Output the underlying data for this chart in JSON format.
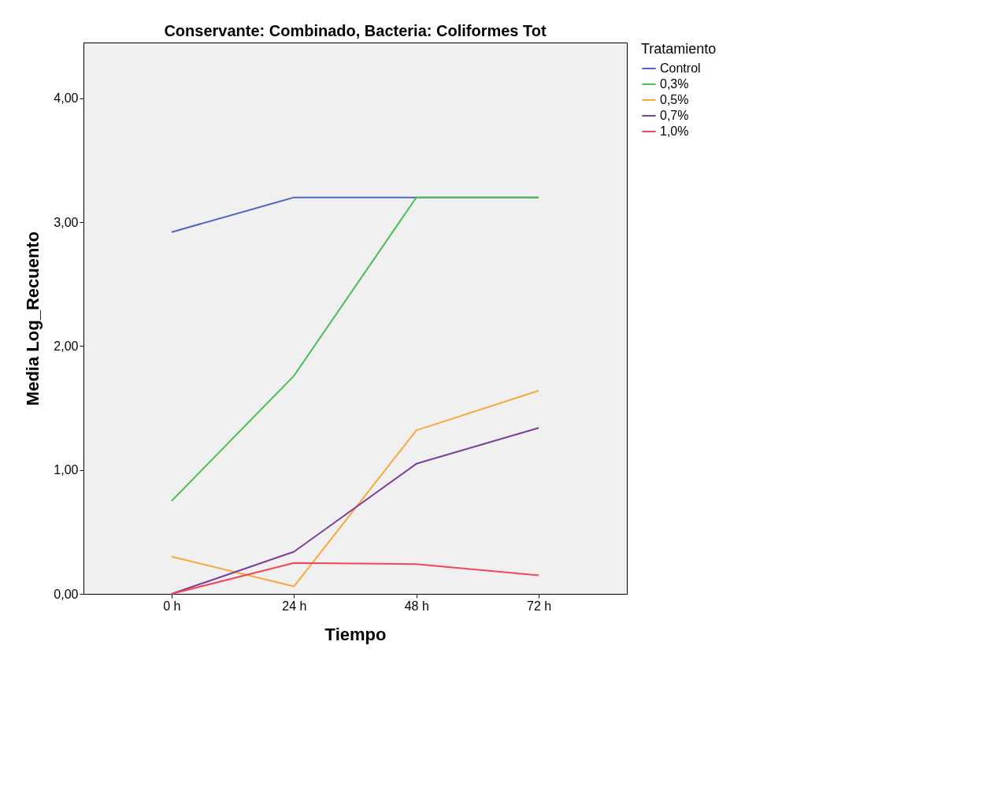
{
  "chart_data": {
    "type": "line",
    "title": "Conservante: Combinado, Bacteria: Coliformes Tot",
    "xlabel": "Tiempo",
    "ylabel": "Media Log_Recuento",
    "legend_title": "Tratamiento",
    "legend": "top right",
    "categories": [
      "0 h",
      "24 h",
      "48 h",
      "72 h"
    ],
    "ylim": [
      0,
      4.45
    ],
    "yticks": [
      {
        "value": 0,
        "label": "0,00"
      },
      {
        "value": 1,
        "label": "1,00"
      },
      {
        "value": 2,
        "label": "2,00"
      },
      {
        "value": 3,
        "label": "3,00"
      },
      {
        "value": 4,
        "label": "4,00"
      }
    ],
    "grid": false,
    "marker": "none",
    "line_style": "solid",
    "series": [
      {
        "name": "Control",
        "color": "#4e66c2",
        "values": [
          2.92,
          3.2,
          3.2,
          3.2
        ]
      },
      {
        "name": "0,3%",
        "color": "#4cc054",
        "values": [
          0.75,
          1.76,
          3.2,
          3.2
        ]
      },
      {
        "name": "0,5%",
        "color": "#f8a83c",
        "values": [
          0.3,
          0.06,
          1.32,
          1.64
        ]
      },
      {
        "name": "0,7%",
        "color": "#7d3f98",
        "values": [
          0.0,
          0.34,
          1.05,
          1.34
        ]
      },
      {
        "name": "1,0%",
        "color": "#f04858",
        "values": [
          0.0,
          0.25,
          0.24,
          0.15
        ]
      }
    ]
  }
}
